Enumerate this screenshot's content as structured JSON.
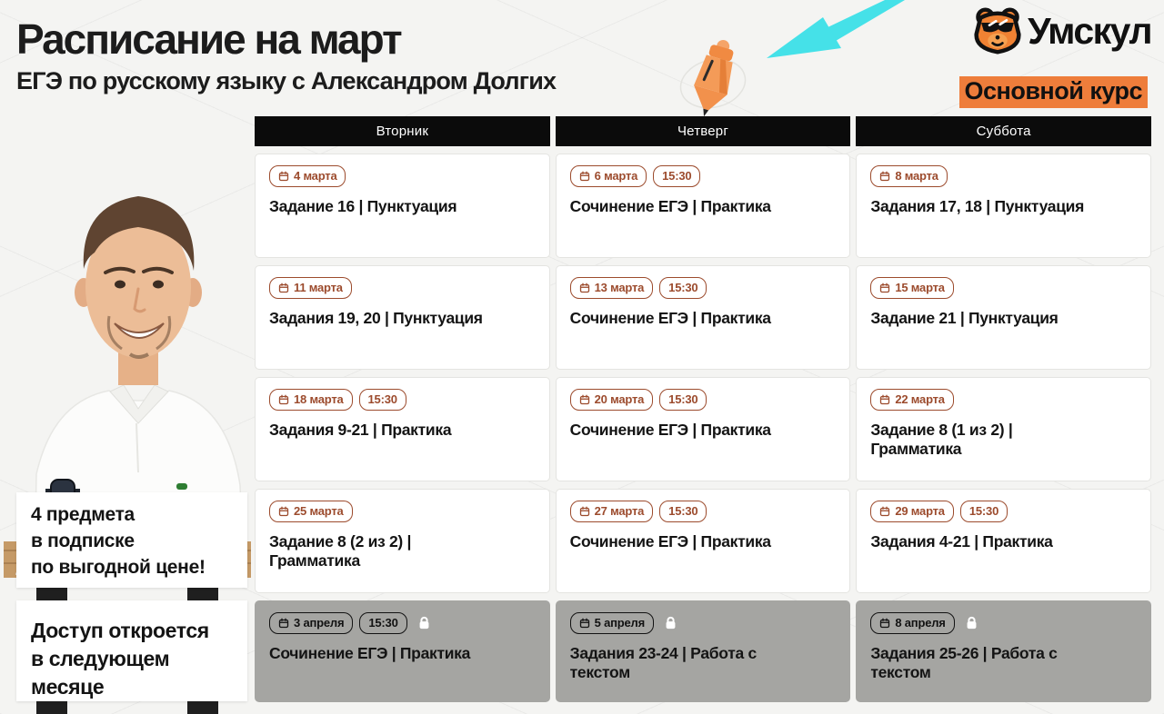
{
  "header": {
    "title": "Расписание на март",
    "subtitle": "ЕГЭ по русскому языку с Александром Долгих",
    "brand": "Умскул",
    "course_badge": "Основной курс"
  },
  "promo": {
    "subscription": "4 предмета\nв подписке\nпо выгодной цене!",
    "access": "Доступ откроется\nв следующем месяце"
  },
  "schedule": {
    "columns": [
      "Вторник",
      "Четверг",
      "Суббота"
    ],
    "rows": [
      [
        {
          "date": "4 марта",
          "time": null,
          "locked": false,
          "title": "Задание 16 | Пунктуация"
        },
        {
          "date": "6 марта",
          "time": "15:30",
          "locked": false,
          "title": "Сочинение ЕГЭ | Практика"
        },
        {
          "date": "8 марта",
          "time": null,
          "locked": false,
          "title": "Задания 17, 18 | Пунктуация"
        }
      ],
      [
        {
          "date": "11 марта",
          "time": null,
          "locked": false,
          "title": "Задания 19, 20 | Пунктуация"
        },
        {
          "date": "13 марта",
          "time": "15:30",
          "locked": false,
          "title": "Сочинение ЕГЭ | Практика"
        },
        {
          "date": "15 марта",
          "time": null,
          "locked": false,
          "title": "Задание 21 | Пунктуация"
        }
      ],
      [
        {
          "date": "18 марта",
          "time": "15:30",
          "locked": false,
          "title": "Задания 9-21 | Практика"
        },
        {
          "date": "20 марта",
          "time": "15:30",
          "locked": false,
          "title": "Сочинение ЕГЭ | Практика"
        },
        {
          "date": "22 марта",
          "time": null,
          "locked": false,
          "title": "Задание 8 (1 из 2) |\nГрамматика"
        }
      ],
      [
        {
          "date": "25 марта",
          "time": null,
          "locked": false,
          "title": "Задание 8 (2 из 2) |\nГрамматика"
        },
        {
          "date": "27 марта",
          "time": "15:30",
          "locked": false,
          "title": "Сочинение ЕГЭ | Практика"
        },
        {
          "date": "29 марта",
          "time": "15:30",
          "locked": false,
          "title": "Задания 4-21 | Практика"
        }
      ],
      [
        {
          "date": "3 апреля",
          "time": "15:30",
          "locked": true,
          "title": "Сочинение ЕГЭ | Практика"
        },
        {
          "date": "5 апреля",
          "time": null,
          "locked": true,
          "title": "Задания 23-24 | Работа с\nтекстом"
        },
        {
          "date": "8 апреля",
          "time": null,
          "locked": true,
          "title": "Задания 25-26 | Работа с\nтекстом"
        }
      ]
    ]
  },
  "colors": {
    "accent_orange": "#EE7D3B",
    "badge_rust": "#9C4B2D",
    "locked_gray": "#A5A5A2",
    "header_black": "#0B0B0B",
    "arrow_cyan": "#45E1E8",
    "background": "#F4F4F2"
  },
  "icons": {
    "calendar": "calendar-icon",
    "lock": "lock-icon",
    "bear_logo": "umschool-bear-logo",
    "arrow": "cyan-arrow-decoration",
    "pencil": "orange-marker-decoration"
  }
}
